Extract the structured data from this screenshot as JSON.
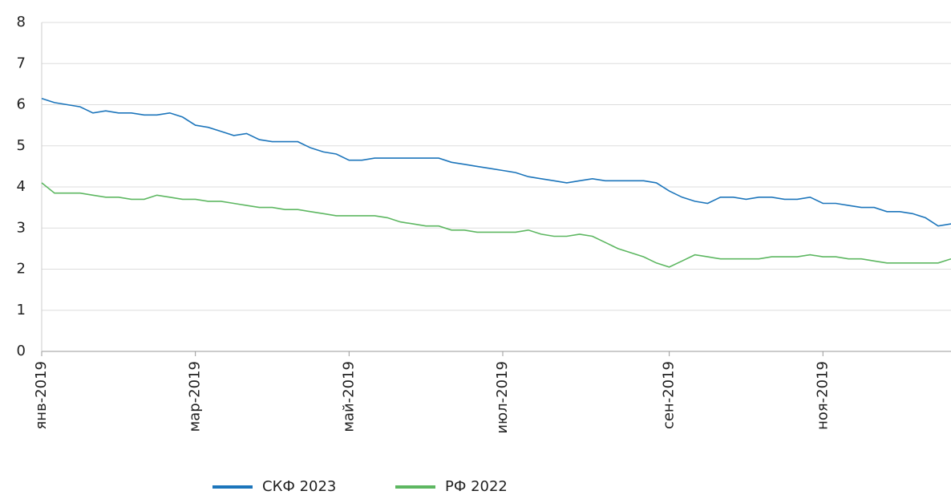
{
  "chart_data": {
    "type": "line",
    "categories": [
      "янв-2019",
      null,
      null,
      null,
      null,
      null,
      null,
      null,
      null,
      null,
      null,
      null,
      "мар-2019",
      null,
      null,
      null,
      null,
      null,
      null,
      null,
      null,
      null,
      null,
      null,
      "май-2019",
      null,
      null,
      null,
      null,
      null,
      null,
      null,
      null,
      null,
      null,
      null,
      "июл-2019",
      null,
      null,
      null,
      null,
      null,
      null,
      null,
      null,
      null,
      null,
      null,
      null,
      "сен-2019",
      null,
      null,
      null,
      null,
      null,
      null,
      null,
      null,
      null,
      null,
      null,
      "ноя-2019",
      null,
      null,
      null,
      null,
      null,
      null,
      null,
      null,
      null,
      null
    ],
    "series": [
      {
        "name": "СКФ 2023",
        "color": "#1c75bb",
        "values": [
          6.15,
          6.05,
          6.0,
          5.95,
          5.8,
          5.85,
          5.8,
          5.8,
          5.75,
          5.75,
          5.8,
          5.7,
          5.5,
          5.45,
          5.35,
          5.25,
          5.3,
          5.15,
          5.1,
          5.1,
          5.1,
          4.95,
          4.85,
          4.8,
          4.65,
          4.65,
          4.7,
          4.7,
          4.7,
          4.7,
          4.7,
          4.7,
          4.6,
          4.55,
          4.5,
          4.45,
          4.4,
          4.35,
          4.25,
          4.2,
          4.15,
          4.1,
          4.15,
          4.2,
          4.15,
          4.15,
          4.15,
          4.15,
          4.1,
          3.9,
          3.75,
          3.65,
          3.6,
          3.75,
          3.75,
          3.7,
          3.75,
          3.75,
          3.7,
          3.7,
          3.75,
          3.6,
          3.6,
          3.55,
          3.5,
          3.5,
          3.4,
          3.4,
          3.35,
          3.25,
          3.05,
          3.1
        ]
      },
      {
        "name": "РФ 2022",
        "color": "#5db761",
        "values": [
          4.1,
          3.85,
          3.85,
          3.85,
          3.8,
          3.75,
          3.75,
          3.7,
          3.7,
          3.8,
          3.75,
          3.7,
          3.7,
          3.65,
          3.65,
          3.6,
          3.55,
          3.5,
          3.5,
          3.45,
          3.45,
          3.4,
          3.35,
          3.3,
          3.3,
          3.3,
          3.3,
          3.25,
          3.15,
          3.1,
          3.05,
          3.05,
          2.95,
          2.95,
          2.9,
          2.9,
          2.9,
          2.9,
          2.95,
          2.85,
          2.8,
          2.8,
          2.85,
          2.8,
          2.65,
          2.5,
          2.4,
          2.3,
          2.15,
          2.05,
          2.2,
          2.35,
          2.3,
          2.25,
          2.25,
          2.25,
          2.25,
          2.3,
          2.3,
          2.3,
          2.35,
          2.3,
          2.3,
          2.25,
          2.25,
          2.2,
          2.15,
          2.15,
          2.15,
          2.15,
          2.15,
          2.25
        ]
      }
    ],
    "ylim": [
      0,
      8
    ],
    "yticks": [
      0,
      1,
      2,
      3,
      4,
      5,
      6,
      7,
      8
    ],
    "grid": true,
    "legend": "bottom"
  }
}
